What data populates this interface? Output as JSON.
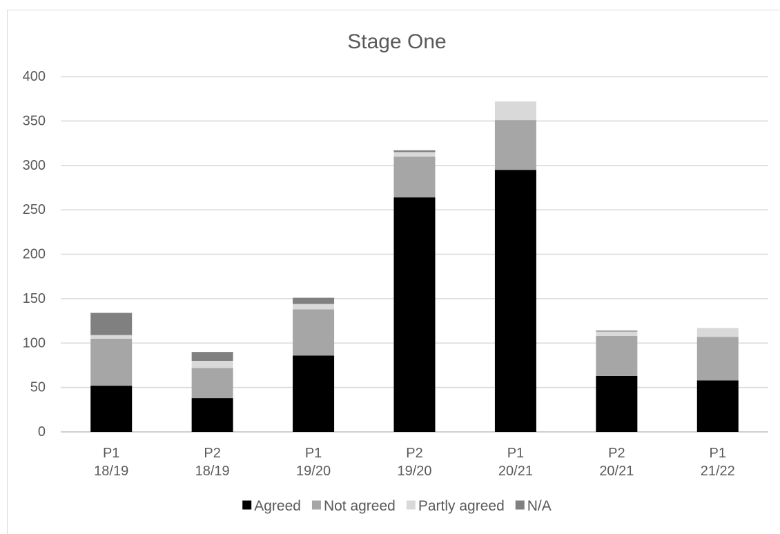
{
  "chart_data": {
    "type": "bar",
    "stacked": true,
    "title": "Stage One",
    "xlabel": "",
    "ylabel": "",
    "categories": [
      [
        "P1",
        "18/19"
      ],
      [
        "P2",
        "18/19"
      ],
      [
        "P1",
        "19/20"
      ],
      [
        "P2",
        "19/20"
      ],
      [
        "P1",
        "20/21"
      ],
      [
        "P2",
        "20/21"
      ],
      [
        "P1",
        "21/22"
      ]
    ],
    "series": [
      {
        "name": "Agreed",
        "color": "#000000",
        "values": [
          52,
          38,
          86,
          264,
          295,
          63,
          58
        ]
      },
      {
        "name": "Not agreed",
        "color": "#a6a6a6",
        "values": [
          53,
          34,
          52,
          46,
          56,
          45,
          49
        ]
      },
      {
        "name": "Partly agreed",
        "color": "#d9d9d9",
        "values": [
          4,
          8,
          6,
          5,
          21,
          5,
          10
        ]
      },
      {
        "name": "N/A",
        "color": "#808080",
        "values": [
          25,
          10,
          7,
          2,
          0,
          1,
          0
        ]
      }
    ],
    "ylim": [
      0,
      400
    ],
    "yticks": [
      0,
      50,
      100,
      150,
      200,
      250,
      300,
      350,
      400
    ],
    "grid": true,
    "legend_position": "bottom"
  }
}
